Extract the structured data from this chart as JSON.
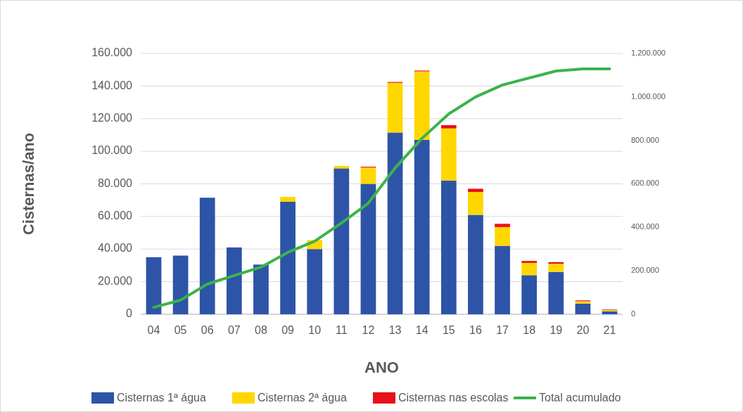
{
  "chart_data": {
    "type": "bar",
    "stacked": true,
    "xlabel": "ANO",
    "ylabel": "Cisternas/ano",
    "categories": [
      "04",
      "05",
      "06",
      "07",
      "08",
      "09",
      "10",
      "11",
      "12",
      "13",
      "14",
      "15",
      "16",
      "17",
      "18",
      "19",
      "20",
      "21"
    ],
    "series": [
      {
        "name": "Cisternas 1ª água",
        "color": "#2e54a8",
        "values": [
          35000,
          36000,
          71500,
          41000,
          30500,
          69000,
          40000,
          89500,
          80000,
          111500,
          107000,
          82000,
          61000,
          42000,
          24000,
          26000,
          6500,
          1800
        ]
      },
      {
        "name": "Cisternas 2ª água",
        "color": "#ffd700",
        "values": [
          0,
          0,
          0,
          0,
          0,
          3000,
          5500,
          1500,
          10000,
          30500,
          42000,
          32000,
          14000,
          11500,
          7500,
          5000,
          1500,
          800
        ]
      },
      {
        "name": "Cisternas nas escolas",
        "color": "#e8101a",
        "values": [
          0,
          0,
          0,
          0,
          0,
          0,
          0,
          0,
          500,
          500,
          500,
          2000,
          2000,
          2000,
          1200,
          1000,
          500,
          300
        ]
      },
      {
        "name": "Total acumulado",
        "type": "line",
        "axis": "y2",
        "color": "#3cb34a",
        "values": [
          32000,
          65000,
          139000,
          178000,
          217000,
          285000,
          336000,
          420000,
          511000,
          673000,
          809000,
          922000,
          1000000,
          1055000,
          1087000,
          1119000,
          1129000,
          1129000
        ]
      }
    ],
    "ylim": [
      0,
      160000
    ],
    "yticks": [
      {
        "value": 0,
        "label": "0"
      },
      {
        "value": 20000,
        "label": "20.000"
      },
      {
        "value": 40000,
        "label": "40.000"
      },
      {
        "value": 60000,
        "label": "60.000"
      },
      {
        "value": 80000,
        "label": "80.000"
      },
      {
        "value": 100000,
        "label": "100.000"
      },
      {
        "value": 120000,
        "label": "120.000"
      },
      {
        "value": 140000,
        "label": "140.000"
      },
      {
        "value": 160000,
        "label": "160.000"
      }
    ],
    "y2lim": [
      0,
      1200000
    ],
    "y2ticks": [
      {
        "value": 0,
        "label": "0"
      },
      {
        "value": 200000,
        "label": "200.000"
      },
      {
        "value": 400000,
        "label": "400.000"
      },
      {
        "value": 600000,
        "label": "600.000"
      },
      {
        "value": 800000,
        "label": "800.000"
      },
      {
        "value": 1000000,
        "label": "1.000.000"
      },
      {
        "value": 1200000,
        "label": "1.200.000"
      }
    ],
    "grid": "y",
    "legend": "bottom"
  }
}
